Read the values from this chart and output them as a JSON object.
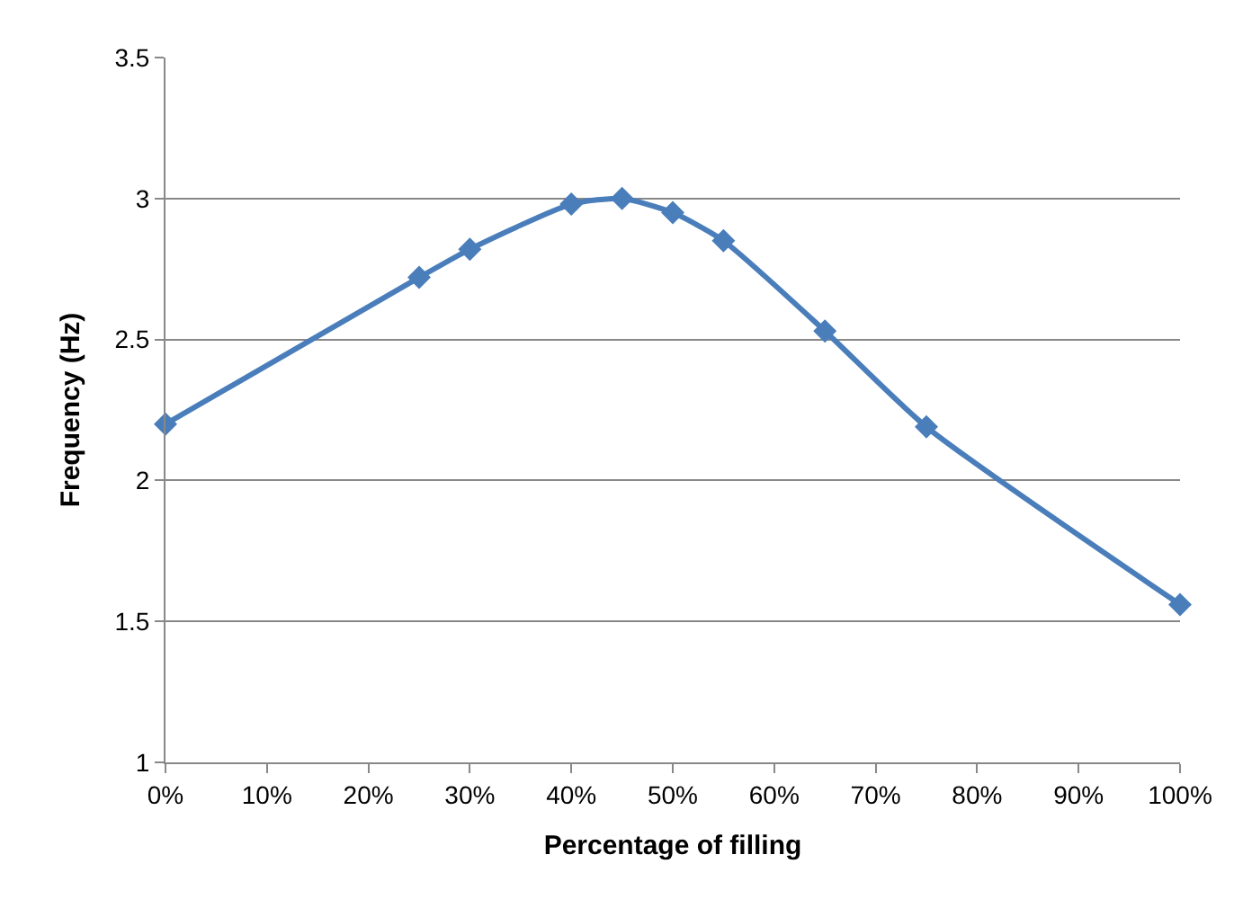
{
  "chart_data": {
    "type": "line",
    "xlabel": "Percentage of filling",
    "ylabel": "Frequency (Hz)",
    "x": [
      0,
      25,
      30,
      40,
      45,
      50,
      55,
      65,
      75,
      100
    ],
    "series": [
      {
        "color": "#4a7ebb",
        "values": [
          2.2,
          2.72,
          2.82,
          2.98,
          3.0,
          2.95,
          2.85,
          2.53,
          2.19,
          1.56
        ]
      }
    ],
    "xlim": [
      0,
      100
    ],
    "xticks": [
      {
        "value": 0,
        "label": "0%"
      },
      {
        "value": 10,
        "label": "10%"
      },
      {
        "value": 20,
        "label": "20%"
      },
      {
        "value": 30,
        "label": "30%"
      },
      {
        "value": 40,
        "label": "40%"
      },
      {
        "value": 50,
        "label": "50%"
      },
      {
        "value": 60,
        "label": "60%"
      },
      {
        "value": 70,
        "label": "70%"
      },
      {
        "value": 80,
        "label": "80%"
      },
      {
        "value": 90,
        "label": "90%"
      },
      {
        "value": 100,
        "label": "100%"
      }
    ],
    "ylim": [
      1,
      3.5
    ],
    "yticks": [
      1,
      1.5,
      2,
      2.5,
      3,
      3.5
    ],
    "grid": "y",
    "marker": "diamond",
    "line_style": "solid"
  }
}
